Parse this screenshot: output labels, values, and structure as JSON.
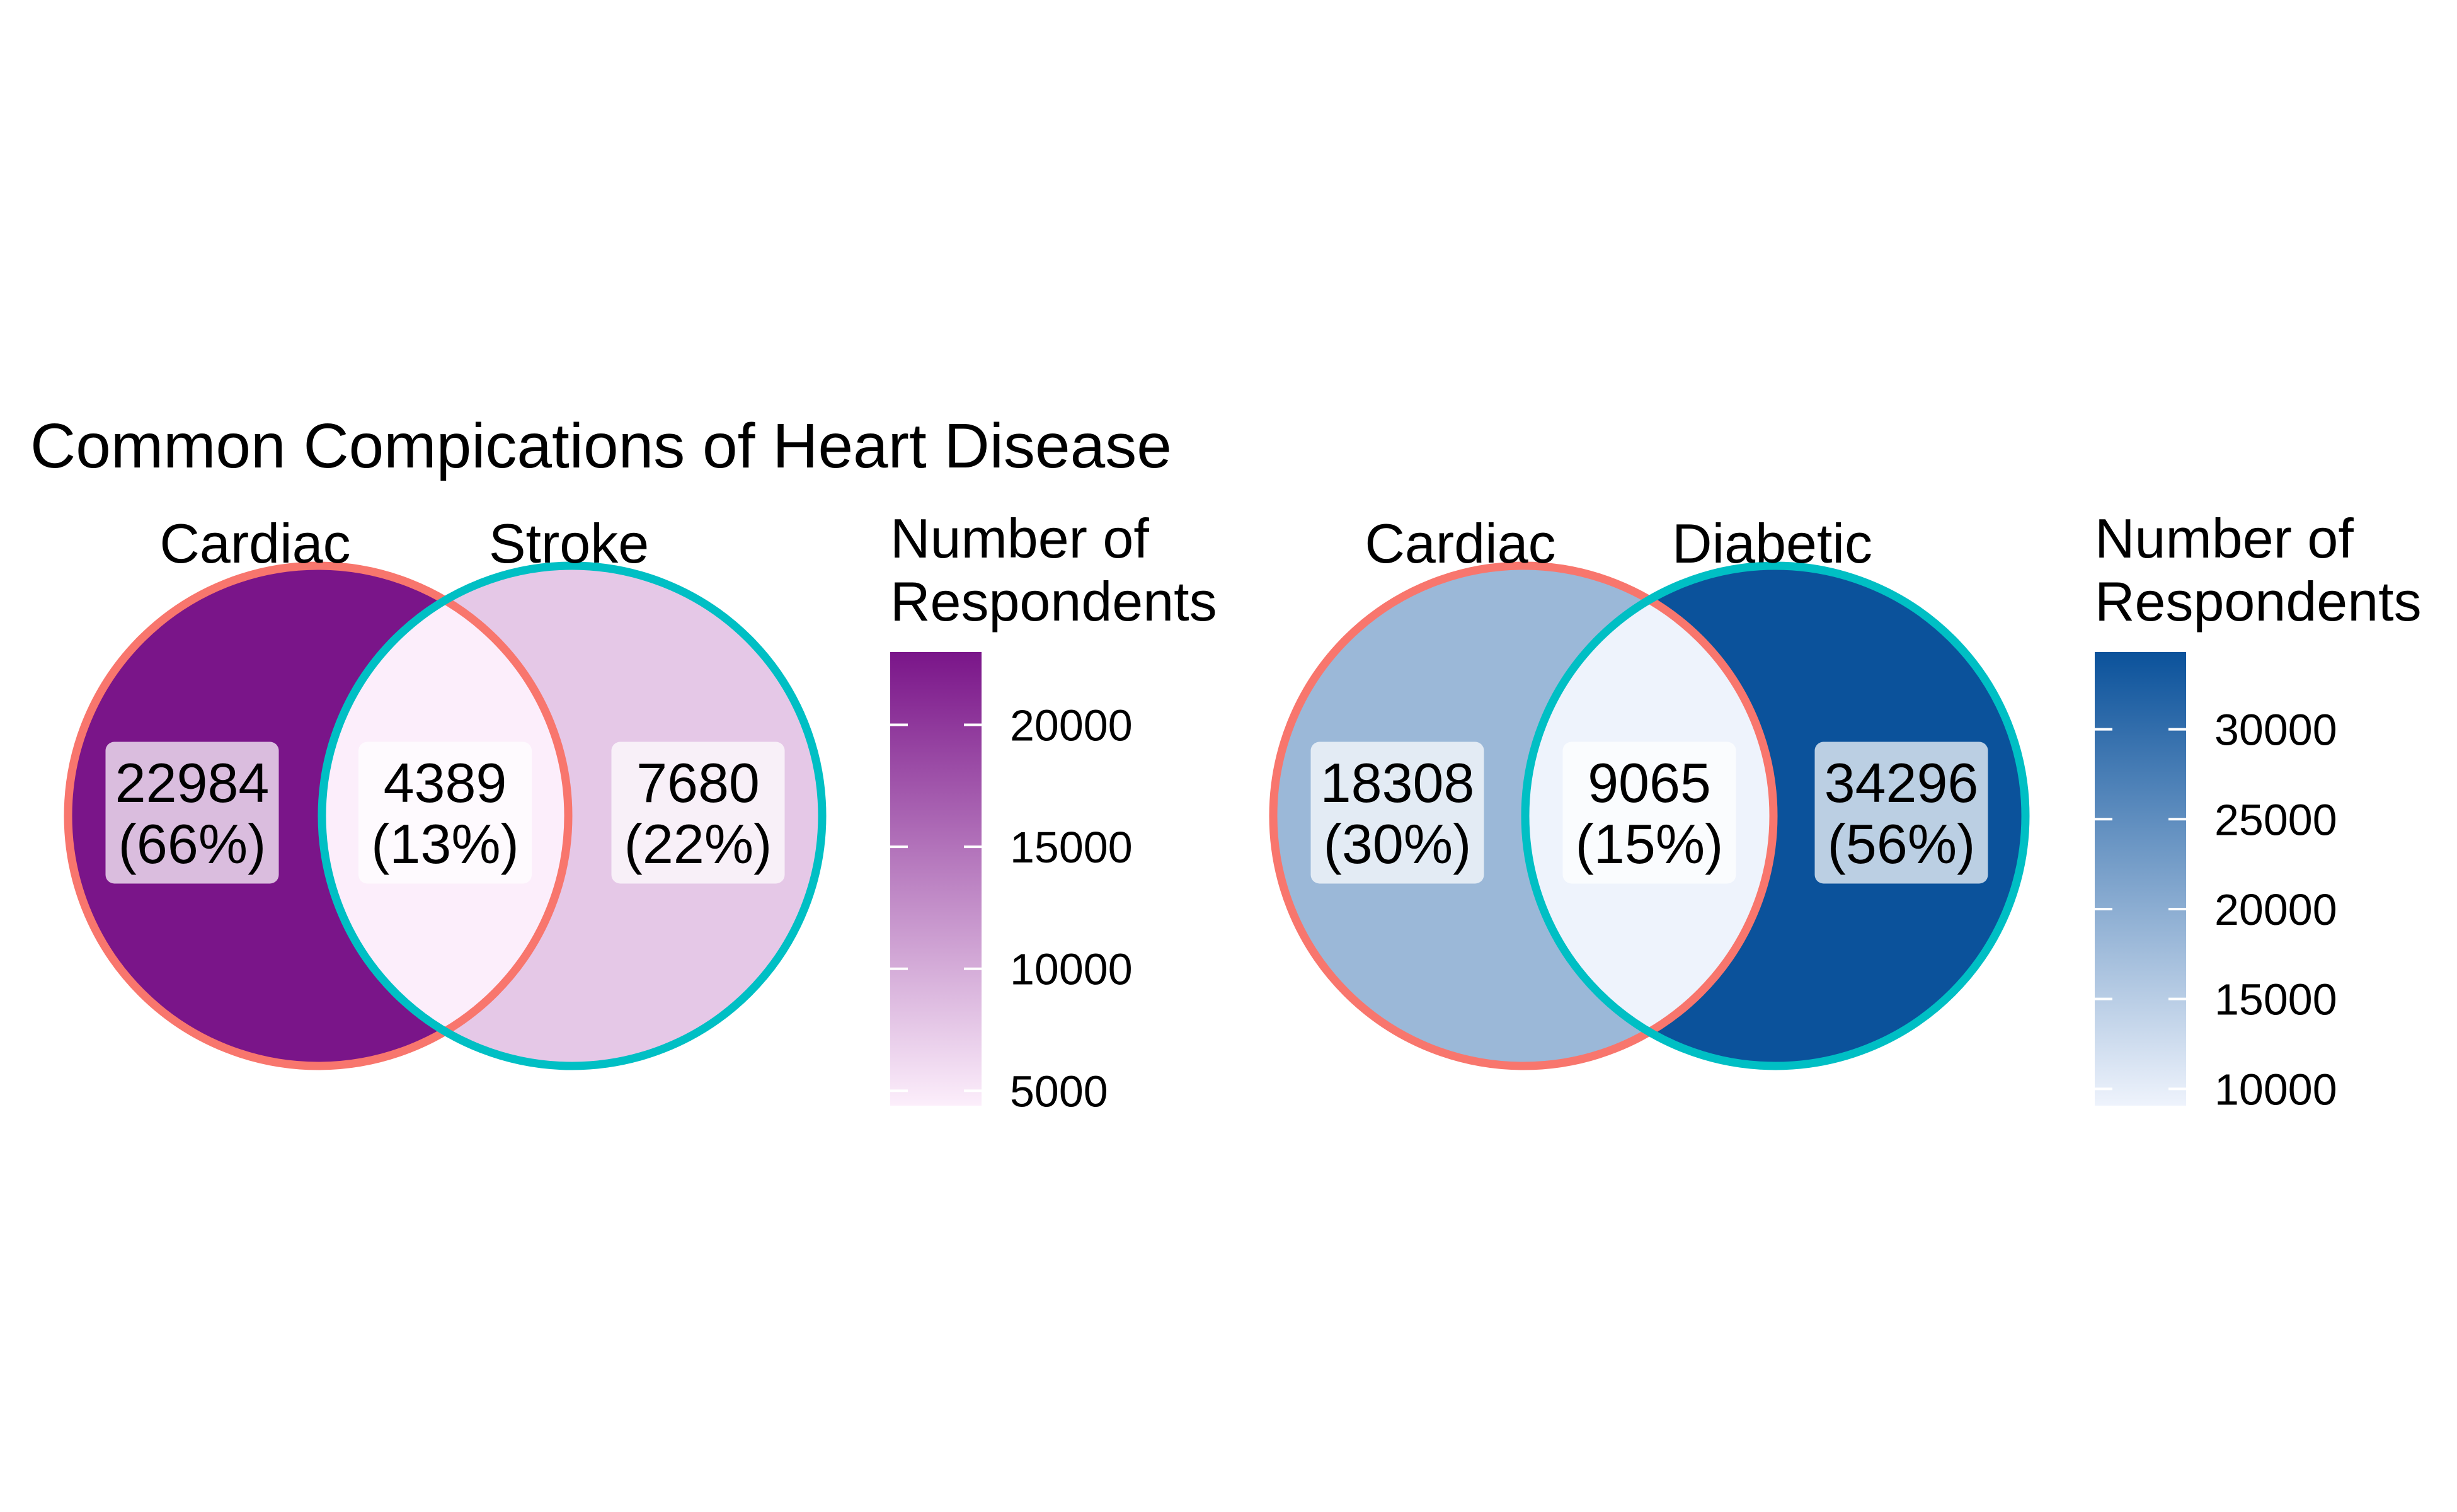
{
  "title": "Common Compications of Heart Disease",
  "chart_data": [
    {
      "type": "venn",
      "sets": [
        "Cardiac",
        "Stroke"
      ],
      "regions": [
        {
          "sets": [
            "Cardiac"
          ],
          "count": 22984,
          "percent_label": "(66%)"
        },
        {
          "sets": [
            "Cardiac",
            "Stroke"
          ],
          "count": 4389,
          "percent_label": "(13%)"
        },
        {
          "sets": [
            "Stroke"
          ],
          "count": 7680,
          "percent_label": "(22%)"
        }
      ],
      "set_edge_colors": {
        "Cardiac": "#F8766D",
        "Stroke": "#00BFC4"
      },
      "legend": {
        "title": "Number of Respondents",
        "title_lines": [
          "Number of",
          "Respondents"
        ],
        "position": "right",
        "range": [
          4389,
          22984
        ],
        "breaks": [
          5000,
          10000,
          15000,
          20000
        ],
        "low_color": "#FCEEFB",
        "high_color": "#7A1589"
      }
    },
    {
      "type": "venn",
      "sets": [
        "Cardiac",
        "Diabetic"
      ],
      "regions": [
        {
          "sets": [
            "Cardiac"
          ],
          "count": 18308,
          "percent_label": "(30%)"
        },
        {
          "sets": [
            "Cardiac",
            "Diabetic"
          ],
          "count": 9065,
          "percent_label": "(15%)"
        },
        {
          "sets": [
            "Diabetic"
          ],
          "count": 34296,
          "percent_label": "(56%)"
        }
      ],
      "set_edge_colors": {
        "Cardiac": "#F8766D",
        "Diabetic": "#00BFC4"
      },
      "legend": {
        "title": "Number of Respondents",
        "title_lines": [
          "Number of",
          "Respondents"
        ],
        "position": "right",
        "range": [
          9065,
          34296
        ],
        "breaks": [
          10000,
          15000,
          20000,
          25000,
          30000
        ],
        "low_color": "#EEF3FC",
        "high_color": "#0B529B"
      }
    }
  ]
}
